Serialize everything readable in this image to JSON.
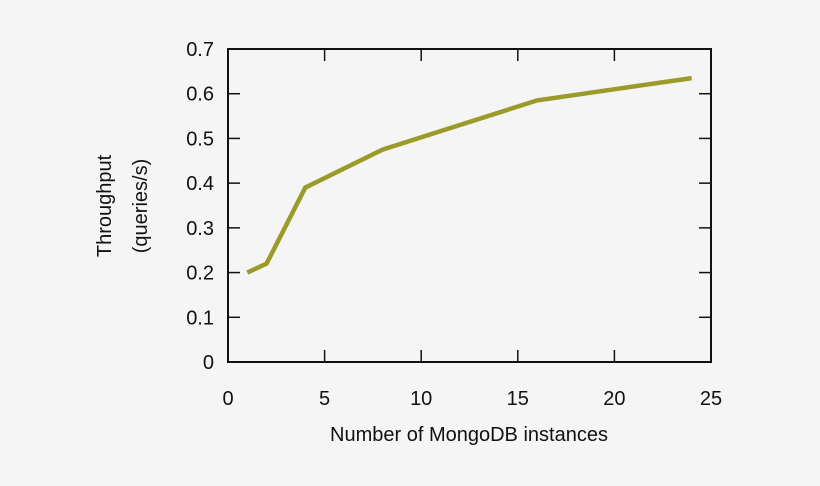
{
  "chart_data": {
    "type": "line",
    "title": "",
    "xlabel": "Number of MongoDB instances",
    "ylabel": [
      "Throughput",
      "(queries/s)"
    ],
    "xlim": [
      0,
      25
    ],
    "ylim": [
      0,
      0.7
    ],
    "xticks": [
      0,
      5,
      10,
      15,
      20,
      25
    ],
    "yticks": [
      0,
      0.1,
      0.2,
      0.3,
      0.4,
      0.5,
      0.6,
      0.7
    ],
    "xtick_labels": [
      "0",
      "5",
      "10",
      "15",
      "20",
      "25"
    ],
    "ytick_labels": [
      "0",
      "0.1",
      "0.2",
      "0.3",
      "0.4",
      "0.5",
      "0.6",
      "0.7"
    ],
    "grid": false,
    "legend": null,
    "series": [
      {
        "name": "Throughput",
        "color": "#9b9b2a",
        "x": [
          1,
          2,
          4,
          8,
          16,
          24
        ],
        "values": [
          0.2,
          0.22,
          0.39,
          0.475,
          0.585,
          0.635
        ]
      }
    ]
  },
  "colors": {
    "background": "#f5f5f5",
    "axis": "#111111",
    "line": "#9b9b2a"
  }
}
